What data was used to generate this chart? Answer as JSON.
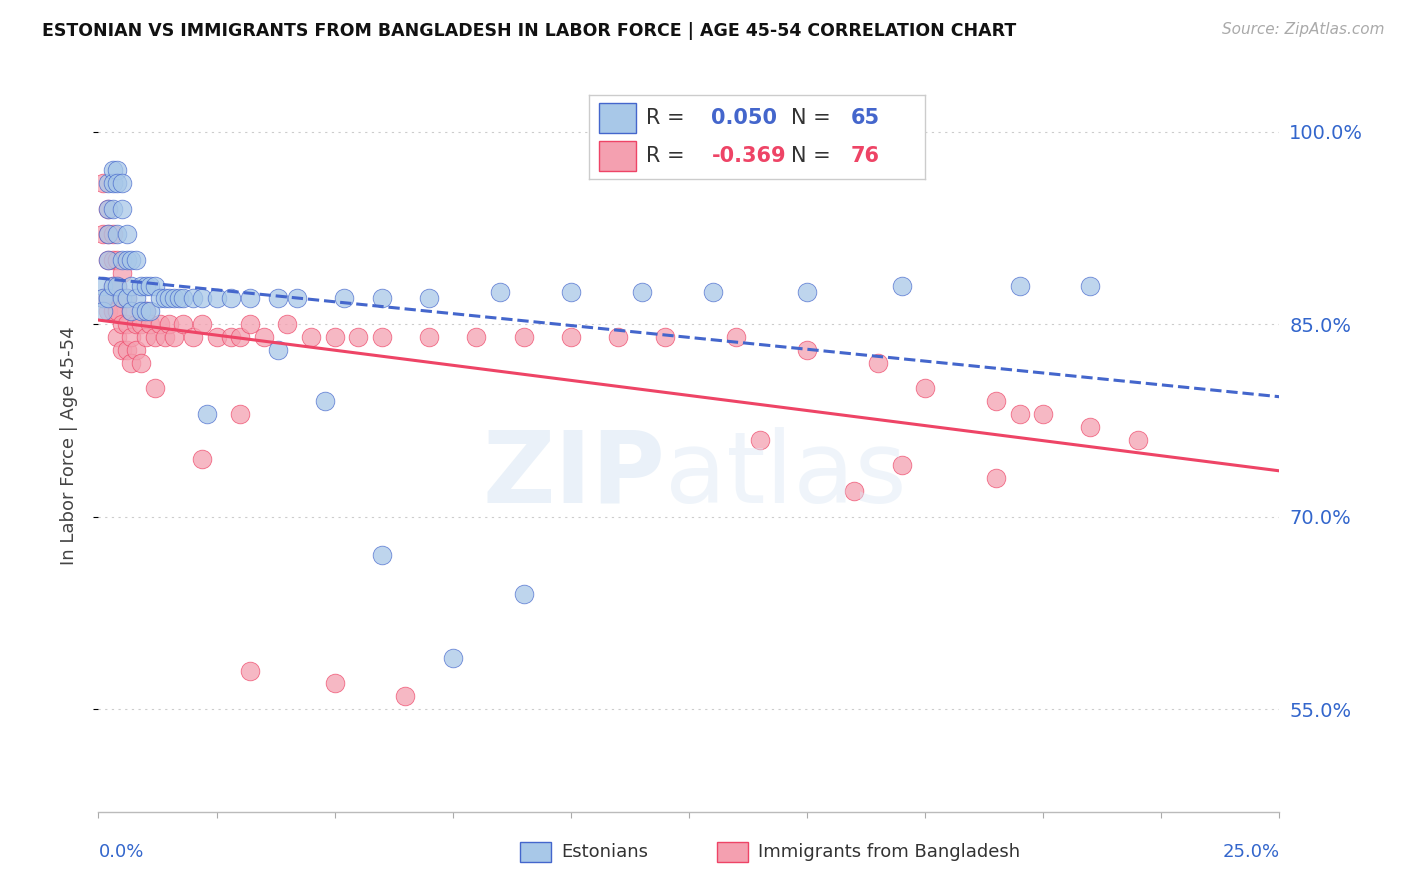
{
  "title": "ESTONIAN VS IMMIGRANTS FROM BANGLADESH IN LABOR FORCE | AGE 45-54 CORRELATION CHART",
  "source": "Source: ZipAtlas.com",
  "ylabel": "In Labor Force | Age 45-54",
  "yticks": [
    0.55,
    0.7,
    0.85,
    1.0
  ],
  "ytick_labels": [
    "55.0%",
    "70.0%",
    "85.0%",
    "100.0%"
  ],
  "xmin": 0.0,
  "xmax": 0.25,
  "ymin": 0.47,
  "ymax": 1.04,
  "blue_R": 0.05,
  "blue_N": 65,
  "pink_R": -0.369,
  "pink_N": 76,
  "blue_color": "#a8c8e8",
  "pink_color": "#f4a0b0",
  "blue_line_color": "#4466cc",
  "pink_line_color": "#ee4466",
  "legend_label_blue": "Estonians",
  "legend_label_pink": "Immigrants from Bangladesh",
  "blue_scatter_x": [
    0.001,
    0.001,
    0.001,
    0.002,
    0.002,
    0.002,
    0.002,
    0.002,
    0.003,
    0.003,
    0.003,
    0.003,
    0.004,
    0.004,
    0.004,
    0.004,
    0.005,
    0.005,
    0.005,
    0.005,
    0.006,
    0.006,
    0.006,
    0.007,
    0.007,
    0.007,
    0.008,
    0.008,
    0.009,
    0.009,
    0.01,
    0.01,
    0.011,
    0.011,
    0.012,
    0.013,
    0.014,
    0.015,
    0.016,
    0.017,
    0.018,
    0.02,
    0.022,
    0.025,
    0.028,
    0.032,
    0.038,
    0.042,
    0.052,
    0.06,
    0.07,
    0.085,
    0.1,
    0.115,
    0.13,
    0.15,
    0.17,
    0.195,
    0.21,
    0.023,
    0.038,
    0.048,
    0.06,
    0.075,
    0.09
  ],
  "blue_scatter_y": [
    0.88,
    0.87,
    0.86,
    0.96,
    0.94,
    0.92,
    0.9,
    0.87,
    0.97,
    0.96,
    0.94,
    0.88,
    0.97,
    0.96,
    0.92,
    0.88,
    0.96,
    0.94,
    0.9,
    0.87,
    0.92,
    0.9,
    0.87,
    0.9,
    0.88,
    0.86,
    0.9,
    0.87,
    0.88,
    0.86,
    0.88,
    0.86,
    0.88,
    0.86,
    0.88,
    0.87,
    0.87,
    0.87,
    0.87,
    0.87,
    0.87,
    0.87,
    0.87,
    0.87,
    0.87,
    0.87,
    0.87,
    0.87,
    0.87,
    0.87,
    0.87,
    0.875,
    0.875,
    0.875,
    0.875,
    0.875,
    0.88,
    0.88,
    0.88,
    0.78,
    0.83,
    0.79,
    0.67,
    0.59,
    0.64
  ],
  "pink_scatter_x": [
    0.001,
    0.001,
    0.001,
    0.002,
    0.002,
    0.002,
    0.002,
    0.002,
    0.003,
    0.003,
    0.003,
    0.003,
    0.004,
    0.004,
    0.004,
    0.004,
    0.005,
    0.005,
    0.005,
    0.005,
    0.006,
    0.006,
    0.006,
    0.007,
    0.007,
    0.007,
    0.008,
    0.008,
    0.009,
    0.009,
    0.01,
    0.01,
    0.011,
    0.012,
    0.013,
    0.014,
    0.015,
    0.016,
    0.018,
    0.02,
    0.022,
    0.025,
    0.028,
    0.03,
    0.032,
    0.035,
    0.04,
    0.045,
    0.05,
    0.055,
    0.06,
    0.07,
    0.08,
    0.09,
    0.1,
    0.11,
    0.12,
    0.135,
    0.15,
    0.165,
    0.175,
    0.19,
    0.2,
    0.21,
    0.22,
    0.195,
    0.14,
    0.17,
    0.19,
    0.16,
    0.05,
    0.065,
    0.03,
    0.022,
    0.012,
    0.032
  ],
  "pink_scatter_y": [
    0.96,
    0.92,
    0.87,
    0.94,
    0.92,
    0.9,
    0.87,
    0.86,
    0.92,
    0.9,
    0.88,
    0.86,
    0.9,
    0.88,
    0.86,
    0.84,
    0.89,
    0.87,
    0.85,
    0.83,
    0.87,
    0.85,
    0.83,
    0.86,
    0.84,
    0.82,
    0.85,
    0.83,
    0.85,
    0.82,
    0.86,
    0.84,
    0.85,
    0.84,
    0.85,
    0.84,
    0.85,
    0.84,
    0.85,
    0.84,
    0.85,
    0.84,
    0.84,
    0.84,
    0.85,
    0.84,
    0.85,
    0.84,
    0.84,
    0.84,
    0.84,
    0.84,
    0.84,
    0.84,
    0.84,
    0.84,
    0.84,
    0.84,
    0.83,
    0.82,
    0.8,
    0.79,
    0.78,
    0.77,
    0.76,
    0.78,
    0.76,
    0.74,
    0.73,
    0.72,
    0.57,
    0.56,
    0.78,
    0.745,
    0.8,
    0.58
  ]
}
